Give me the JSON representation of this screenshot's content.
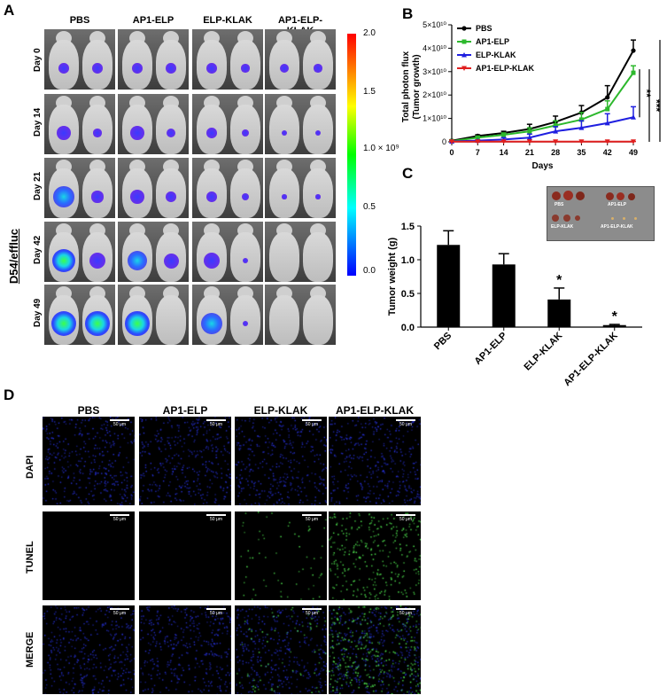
{
  "panelA": {
    "label": "A",
    "side_label": "D54/effluc",
    "columns": [
      "PBS",
      "AP1-ELP",
      "ELP-KLAK",
      "AP1-ELP-KLAK"
    ],
    "rows": [
      "Day 0",
      "Day 14",
      "Day 21",
      "Day 42",
      "Day 49"
    ],
    "colorbar": {
      "ticks": [
        "2.0",
        "1.5",
        "1.0 × 10⁹",
        "0.5",
        "0.0"
      ],
      "colors": [
        "#ff0000",
        "#ffff00",
        "#00ff00",
        "#00ffff",
        "#0000ff"
      ]
    },
    "signal_intensity_fraction": [
      [
        0.3,
        0.3,
        0.3,
        0.3,
        0.3,
        0.2,
        0.25,
        0.2
      ],
      [
        0.45,
        0.2,
        0.45,
        0.25,
        0.3,
        0.15,
        0.1,
        0.1
      ],
      [
        0.75,
        0.35,
        0.45,
        0.3,
        0.3,
        0.15,
        0.05,
        0.05
      ],
      [
        0.85,
        0.55,
        0.7,
        0.5,
        0.55,
        0.1,
        0.0,
        0.0
      ],
      [
        0.95,
        0.9,
        0.9,
        0.0,
        0.8,
        0.1,
        0.0,
        0.0
      ]
    ]
  },
  "panelB": {
    "label": "B",
    "chart_data": {
      "type": "line",
      "xlabel": "Days",
      "ylabel": "Total photon flux\n(Tumor growth)",
      "ylabel_line1": "Total photon flux",
      "ylabel_line2": "(Tumor growth)",
      "x": [
        0,
        7,
        14,
        21,
        28,
        35,
        42,
        49
      ],
      "xticks": [
        "0",
        "7",
        "14",
        "21",
        "28",
        "35",
        "42",
        "49"
      ],
      "yticks": [
        "0",
        "1×10¹⁰",
        "2×10¹⁰",
        "3×10¹⁰",
        "4×10¹⁰",
        "5×10¹⁰"
      ],
      "ylim": [
        0,
        50000000000
      ],
      "series": [
        {
          "name": "PBS",
          "color": "#000000",
          "marker": "circle",
          "values": [
            500000000,
            2500000000,
            3800000000,
            5500000000,
            8500000000,
            12500000000,
            19000000000,
            39000000000
          ],
          "errors": [
            300000000,
            500000000,
            700000000,
            2000000000,
            2500000000,
            3000000000,
            5000000000,
            4500000000
          ]
        },
        {
          "name": "AP1-ELP",
          "color": "#2db82d",
          "marker": "square",
          "values": [
            300000000,
            1800000000,
            3000000000,
            4500000000,
            7000000000,
            9500000000,
            14000000000,
            29500000000
          ],
          "errors": [
            200000000,
            500000000,
            800000000,
            1500000000,
            2000000000,
            3000000000,
            3500000000,
            3000000000
          ]
        },
        {
          "name": "ELP-KLAK",
          "color": "#1f1fe0",
          "marker": "triangle-up",
          "values": [
            200000000,
            500000000,
            1000000000,
            1800000000,
            4500000000,
            6000000000,
            8000000000,
            10500000000
          ],
          "errors": [
            100000000,
            300000000,
            800000000,
            1500000000,
            2000000000,
            3000000000,
            4000000000,
            4500000000
          ]
        },
        {
          "name": "AP1-ELP-KLAK",
          "color": "#e01f1f",
          "marker": "triangle-down",
          "values": [
            100000000,
            100000000,
            100000000,
            100000000,
            100000000,
            100000000,
            100000000,
            100000000
          ],
          "errors": [
            50000000,
            50000000,
            50000000,
            50000000,
            50000000,
            50000000,
            50000000,
            50000000
          ]
        }
      ],
      "legend": "top-left",
      "significance": [
        "***",
        "***",
        "**"
      ]
    }
  },
  "panelC": {
    "label": "C",
    "chart_data": {
      "type": "bar",
      "ylabel": "Tumor weight (g)",
      "categories": [
        "PBS",
        "AP1-ELP",
        "ELP-KLAK",
        "AP1-ELP-KLAK"
      ],
      "values": [
        1.22,
        0.93,
        0.41,
        0.03
      ],
      "errors": [
        0.21,
        0.16,
        0.17,
        0.01
      ],
      "ylim": [
        0,
        1.5
      ],
      "yticks": [
        "0.0",
        "0.5",
        "1.0",
        "1.5"
      ],
      "significance": [
        "",
        "",
        "*",
        "*"
      ]
    },
    "inset_labels": [
      "PBS",
      "AP1-ELP",
      "ELP-KLAK",
      "AP1-ELP-KLAK"
    ]
  },
  "panelD": {
    "label": "D",
    "columns": [
      "PBS",
      "AP1-ELP",
      "ELP-KLAK",
      "AP1-ELP-KLAK"
    ],
    "rows": [
      "DAPI",
      "TUNEL",
      "MERGE"
    ],
    "scale_bar": "50 μm",
    "tunel_positive_fraction": [
      0.0,
      0.0,
      0.15,
      0.7
    ]
  }
}
